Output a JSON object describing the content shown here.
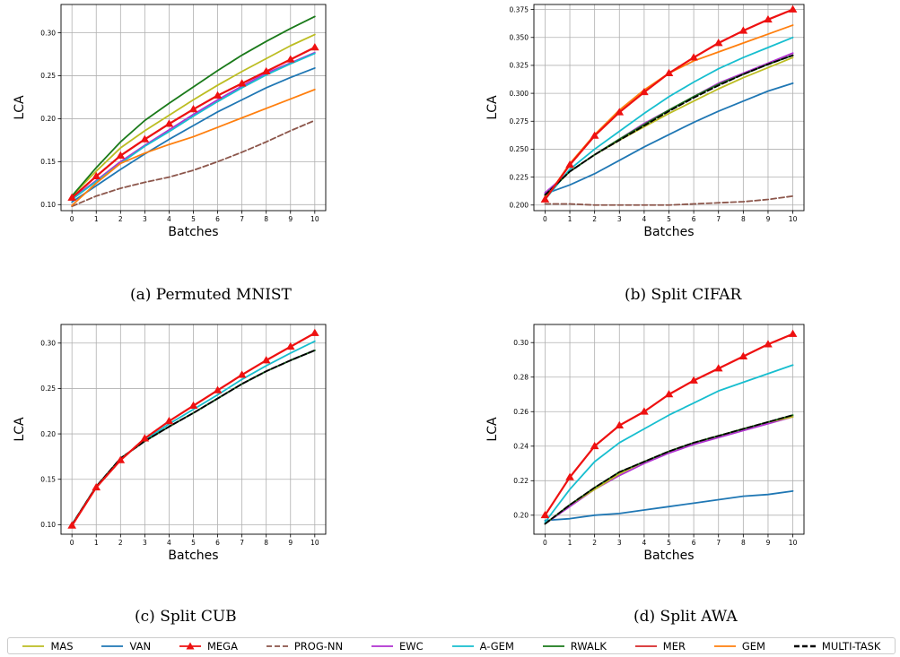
{
  "captions": [
    "(a) Permuted MNIST",
    "(b) Split CIFAR",
    "(c) Split CUB",
    "(d) Split AWA"
  ],
  "series_styles": [
    {
      "name": "MAS",
      "color": "#bcbd22",
      "dash": "solid",
      "marker": "none"
    },
    {
      "name": "VAN",
      "color": "#1f77b4",
      "dash": "solid",
      "marker": "none"
    },
    {
      "name": "MEGA",
      "color": "#ee1111",
      "dash": "solid",
      "marker": "triangle"
    },
    {
      "name": "PROG-NN",
      "color": "#8c564b",
      "dash": "dashed",
      "marker": "none"
    },
    {
      "name": "EWC",
      "color": "#b131d1",
      "dash": "solid",
      "marker": "none"
    },
    {
      "name": "A-GEM",
      "color": "#17becf",
      "dash": "solid",
      "marker": "none"
    },
    {
      "name": "RWALK",
      "color": "#1a7a1a",
      "dash": "solid",
      "marker": "none"
    },
    {
      "name": "MER",
      "color": "#d62728",
      "dash": "solid",
      "marker": "none"
    },
    {
      "name": "GEM",
      "color": "#ff7f0e",
      "dash": "solid",
      "marker": "none"
    },
    {
      "name": "MULTI-TASK",
      "color": "#000000",
      "dash": "dashed",
      "marker": "none"
    }
  ],
  "chart_data": [
    {
      "type": "line",
      "xlabel": "Batches",
      "ylabel": "LCA",
      "x": [
        0,
        1,
        2,
        3,
        4,
        5,
        6,
        7,
        8,
        9,
        10
      ],
      "xlim": [
        -0.45,
        10.45
      ],
      "ylim": [
        0.093,
        0.333
      ],
      "yticks": [
        0.1,
        0.15,
        0.2,
        0.25,
        0.3
      ],
      "ytick_labels": [
        "0.10",
        "0.15",
        "0.20",
        "0.25",
        "0.30"
      ],
      "grid": true,
      "series": [
        {
          "name": "MAS",
          "values": [
            0.11,
            0.139,
            0.166,
            0.186,
            0.204,
            0.222,
            0.239,
            0.255,
            0.27,
            0.285,
            0.298
          ]
        },
        {
          "name": "VAN",
          "values": [
            0.103,
            0.122,
            0.141,
            0.159,
            0.176,
            0.192,
            0.208,
            0.222,
            0.236,
            0.248,
            0.259
          ]
        },
        {
          "name": "PROG-NN",
          "values": [
            0.098,
            0.11,
            0.119,
            0.126,
            0.132,
            0.14,
            0.15,
            0.161,
            0.173,
            0.186,
            0.198
          ]
        },
        {
          "name": "EWC",
          "values": [
            0.107,
            0.128,
            0.15,
            0.169,
            0.187,
            0.205,
            0.222,
            0.238,
            0.253,
            0.265,
            0.277
          ]
        },
        {
          "name": "A-GEM",
          "values": [
            0.106,
            0.127,
            0.148,
            0.168,
            0.185,
            0.203,
            0.22,
            0.236,
            0.251,
            0.264,
            0.276
          ]
        },
        {
          "name": "RWALK",
          "values": [
            0.11,
            0.143,
            0.173,
            0.198,
            0.218,
            0.237,
            0.256,
            0.274,
            0.29,
            0.305,
            0.319
          ]
        },
        {
          "name": "MER",
          "values": [
            0.108,
            0.133,
            0.157,
            0.176,
            0.194,
            0.211,
            0.227,
            0.241,
            0.255,
            0.269,
            0.283
          ]
        },
        {
          "name": "GEM",
          "values": [
            0.099,
            0.125,
            0.148,
            0.16,
            0.17,
            0.179,
            0.19,
            0.201,
            0.212,
            0.223,
            0.234
          ]
        },
        {
          "name": "MULTI-TASK",
          "values": [
            0.108,
            0.133,
            0.157,
            0.176,
            0.194,
            0.211,
            0.227,
            0.241,
            0.255,
            0.269,
            0.283
          ]
        },
        {
          "name": "MEGA",
          "values": [
            0.108,
            0.133,
            0.157,
            0.176,
            0.194,
            0.211,
            0.227,
            0.241,
            0.255,
            0.269,
            0.283
          ]
        }
      ]
    },
    {
      "type": "line",
      "xlabel": "Batches",
      "ylabel": "LCA",
      "x": [
        0,
        1,
        2,
        3,
        4,
        5,
        6,
        7,
        8,
        9,
        10
      ],
      "xlim": [
        -0.45,
        10.45
      ],
      "ylim": [
        0.195,
        0.3795
      ],
      "yticks": [
        0.2,
        0.225,
        0.25,
        0.275,
        0.3,
        0.325,
        0.35,
        0.375
      ],
      "ytick_labels": [
        "0.200",
        "0.225",
        "0.250",
        "0.275",
        "0.300",
        "0.325",
        "0.350",
        "0.375"
      ],
      "grid": true,
      "series": [
        {
          "name": "MAS",
          "values": [
            0.208,
            0.23,
            0.245,
            0.258,
            0.27,
            0.282,
            0.293,
            0.304,
            0.314,
            0.323,
            0.332
          ]
        },
        {
          "name": "VAN",
          "values": [
            0.21,
            0.218,
            0.228,
            0.24,
            0.252,
            0.263,
            0.274,
            0.284,
            0.293,
            0.302,
            0.309
          ]
        },
        {
          "name": "PROG-NN",
          "values": [
            0.201,
            0.201,
            0.2,
            0.2,
            0.2,
            0.2,
            0.201,
            0.202,
            0.203,
            0.205,
            0.208
          ]
        },
        {
          "name": "EWC",
          "values": [
            0.211,
            0.23,
            0.245,
            0.259,
            0.273,
            0.285,
            0.297,
            0.309,
            0.318,
            0.327,
            0.336
          ]
        },
        {
          "name": "A-GEM",
          "values": [
            0.205,
            0.232,
            0.25,
            0.266,
            0.282,
            0.297,
            0.31,
            0.322,
            0.332,
            0.341,
            0.35
          ]
        },
        {
          "name": "RWALK",
          "values": [
            0.209,
            0.23,
            0.245,
            0.259,
            0.272,
            0.285,
            0.297,
            0.308,
            0.317,
            0.326,
            0.334
          ]
        },
        {
          "name": "MER",
          "values": [
            0.205,
            0.236,
            0.262,
            0.283,
            0.301,
            0.318,
            0.332,
            0.345,
            0.356,
            0.366,
            0.375
          ]
        },
        {
          "name": "GEM",
          "values": [
            0.205,
            0.237,
            0.263,
            0.285,
            0.303,
            0.318,
            0.329,
            0.337,
            0.345,
            0.353,
            0.361
          ]
        },
        {
          "name": "MULTI-TASK",
          "values": [
            0.209,
            0.23,
            0.245,
            0.258,
            0.271,
            0.284,
            0.296,
            0.307,
            0.317,
            0.326,
            0.334
          ]
        },
        {
          "name": "MEGA",
          "values": [
            0.205,
            0.236,
            0.262,
            0.283,
            0.301,
            0.318,
            0.332,
            0.345,
            0.356,
            0.366,
            0.375
          ]
        }
      ]
    },
    {
      "type": "line",
      "xlabel": "Batches",
      "ylabel": "LCA",
      "x": [
        0,
        1,
        2,
        3,
        4,
        5,
        6,
        7,
        8,
        9,
        10
      ],
      "xlim": [
        -0.45,
        10.45
      ],
      "ylim": [
        0.0895,
        0.3205
      ],
      "yticks": [
        0.1,
        0.15,
        0.2,
        0.25,
        0.3
      ],
      "ytick_labels": [
        "0.10",
        "0.15",
        "0.20",
        "0.25",
        "0.30"
      ],
      "grid": true,
      "series": [
        {
          "name": "MAS",
          "values": [
            0.1,
            0.142,
            0.173,
            0.192,
            0.208,
            0.223,
            0.239,
            0.255,
            0.269,
            0.281,
            0.292
          ]
        },
        {
          "name": "VAN",
          "values": [
            0.1,
            0.142,
            0.173,
            0.192,
            0.208,
            0.223,
            0.239,
            0.255,
            0.269,
            0.281,
            0.292
          ]
        },
        {
          "name": "EWC",
          "values": [
            0.1,
            0.142,
            0.173,
            0.192,
            0.208,
            0.223,
            0.239,
            0.255,
            0.269,
            0.281,
            0.292
          ]
        },
        {
          "name": "A-GEM",
          "values": [
            0.1,
            0.142,
            0.172,
            0.193,
            0.211,
            0.227,
            0.243,
            0.26,
            0.275,
            0.289,
            0.302
          ]
        },
        {
          "name": "RWALK",
          "values": [
            0.1,
            0.142,
            0.173,
            0.192,
            0.208,
            0.223,
            0.239,
            0.255,
            0.269,
            0.281,
            0.292
          ]
        },
        {
          "name": "MULTI-TASK",
          "values": [
            0.1,
            0.142,
            0.173,
            0.192,
            0.208,
            0.223,
            0.239,
            0.255,
            0.269,
            0.281,
            0.292
          ]
        },
        {
          "name": "MER",
          "values": [
            0.099,
            0.141,
            0.171,
            0.195,
            0.214,
            0.231,
            0.248,
            0.265,
            0.281,
            0.296,
            0.311
          ]
        },
        {
          "name": "MEGA",
          "values": [
            0.099,
            0.141,
            0.171,
            0.195,
            0.214,
            0.231,
            0.248,
            0.265,
            0.281,
            0.296,
            0.311
          ]
        }
      ]
    },
    {
      "type": "line",
      "xlabel": "Batches",
      "ylabel": "LCA",
      "x": [
        0,
        1,
        2,
        3,
        4,
        5,
        6,
        7,
        8,
        9,
        10
      ],
      "xlim": [
        -0.45,
        10.45
      ],
      "ylim": [
        0.189,
        0.3105
      ],
      "yticks": [
        0.2,
        0.22,
        0.24,
        0.26,
        0.28,
        0.3
      ],
      "ytick_labels": [
        "0.20",
        "0.22",
        "0.24",
        "0.26",
        "0.28",
        "0.30"
      ],
      "grid": true,
      "series": [
        {
          "name": "VAN",
          "values": [
            0.197,
            0.198,
            0.2,
            0.201,
            0.203,
            0.205,
            0.207,
            0.209,
            0.211,
            0.212,
            0.214
          ]
        },
        {
          "name": "EWC",
          "values": [
            0.195,
            0.205,
            0.215,
            0.223,
            0.23,
            0.236,
            0.241,
            0.245,
            0.249,
            0.253,
            0.257
          ]
        },
        {
          "name": "MAS",
          "values": [
            0.195,
            0.206,
            0.215,
            0.224,
            0.231,
            0.237,
            0.242,
            0.246,
            0.25,
            0.254,
            0.257
          ]
        },
        {
          "name": "A-GEM",
          "values": [
            0.196,
            0.215,
            0.231,
            0.242,
            0.25,
            0.258,
            0.265,
            0.272,
            0.277,
            0.282,
            0.287
          ]
        },
        {
          "name": "RWALK",
          "values": [
            0.195,
            0.206,
            0.216,
            0.225,
            0.231,
            0.237,
            0.242,
            0.246,
            0.25,
            0.254,
            0.258
          ]
        },
        {
          "name": "MULTI-TASK",
          "values": [
            0.195,
            0.206,
            0.216,
            0.225,
            0.231,
            0.237,
            0.242,
            0.246,
            0.25,
            0.254,
            0.258
          ]
        },
        {
          "name": "MER",
          "values": [
            0.2,
            0.222,
            0.24,
            0.252,
            0.26,
            0.27,
            0.278,
            0.285,
            0.292,
            0.299,
            0.305
          ]
        },
        {
          "name": "MEGA",
          "values": [
            0.2,
            0.222,
            0.24,
            0.252,
            0.26,
            0.27,
            0.278,
            0.285,
            0.292,
            0.299,
            0.305
          ]
        }
      ]
    }
  ]
}
